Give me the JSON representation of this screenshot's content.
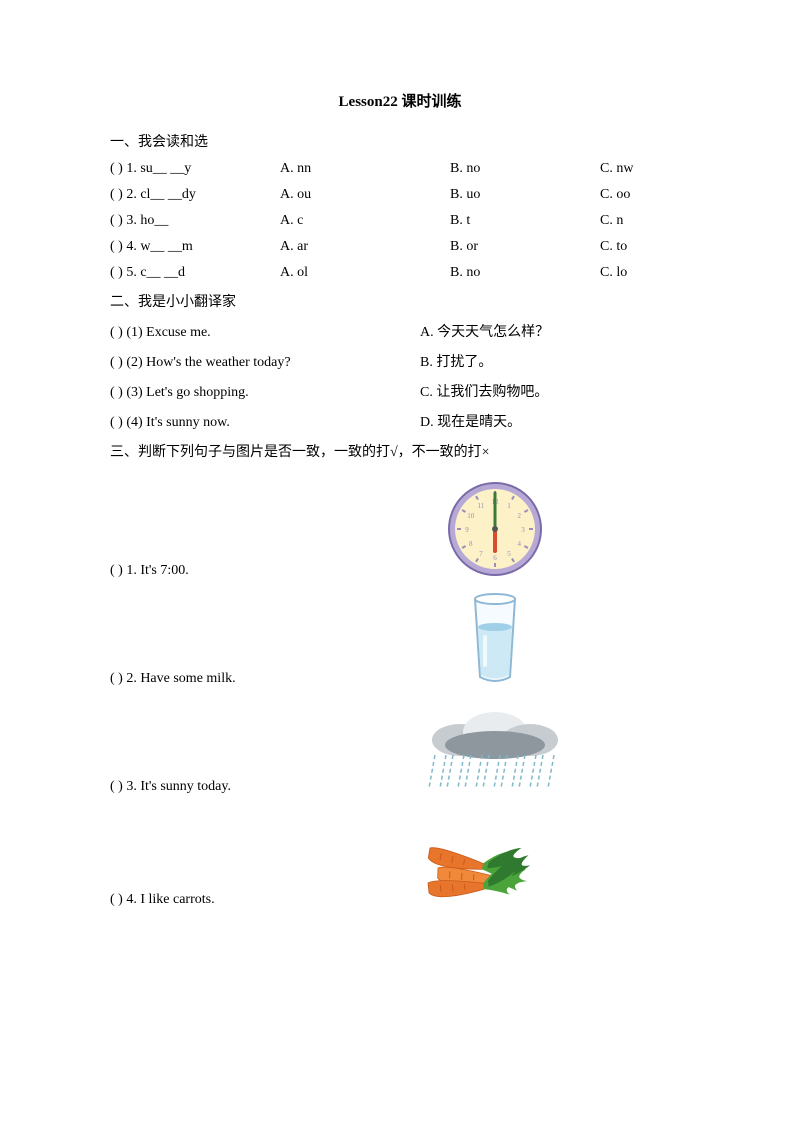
{
  "title": "Lesson22 课时训练",
  "section1": {
    "header": "一、我会读和选",
    "rows": [
      {
        "q": "(  ) 1. su__ __y",
        "a": "A. nn",
        "b": "B. no",
        "c": "C. nw"
      },
      {
        "q": "(  ) 2. cl__ __dy",
        "a": "A. ou",
        "b": "B. uo",
        "c": "C. oo"
      },
      {
        "q": "(  ) 3. ho__",
        "a": "A. c",
        "b": "B. t",
        "c": "C. n"
      },
      {
        "q": "(  ) 4. w__ __m",
        "a": "A. ar",
        "b": "B. or",
        "c": "C. to"
      },
      {
        "q": "(  ) 5. c__ __d",
        "a": "A. ol",
        "b": "B. no",
        "c": "C. lo"
      }
    ]
  },
  "section2": {
    "header": "二、我是小小翻译家",
    "rows": [
      {
        "l": "(  ) (1) Excuse me.",
        "r": "A. 今天天气怎么样？"
      },
      {
        "l": "(  ) (2) How's the weather today?",
        "r": "B. 打扰了。"
      },
      {
        "l": "(  ) (3) Let's go shopping.",
        "r": "C. 让我们去购物吧。"
      },
      {
        "l": "(  ) (4) It's sunny now.",
        "r": "D. 现在是晴天。"
      }
    ]
  },
  "section3": {
    "header": "三、判断下列句子与图片是否一致，一致的打√，不一致的打×",
    "items": [
      {
        "text": "(  ) 1. It's 7:00.",
        "img": "clock"
      },
      {
        "text": "(  ) 2. Have some milk.",
        "img": "glass"
      },
      {
        "text": "(  ) 3. It's sunny today.",
        "img": "rain"
      },
      {
        "text": "(  ) 4. I like carrots.",
        "img": "carrots"
      }
    ]
  },
  "images": {
    "clock": {
      "face_fill": "#fdf1c7",
      "rim_fill": "#b7a9d6",
      "rim_stroke": "#7a6aa8",
      "hour_hand": "#d94a2e",
      "minute_hand": "#3b7a3b",
      "tick_color": "#9a8db8",
      "center": "#555555"
    },
    "glass": {
      "outline": "#8fb8d6",
      "water_top": "#9fd0e8",
      "water_body": "#cde9f5",
      "highlight": "#ffffff"
    },
    "rain": {
      "cloud_light": "#e9ecef",
      "cloud_mid": "#c7ccd1",
      "cloud_dark": "#8f979e",
      "rain_color": "#7fb8c9"
    },
    "carrots": {
      "body1": "#e8752c",
      "body2": "#f08a3a",
      "leaf1": "#2f7a2f",
      "leaf2": "#4aa43a",
      "line": "#c85a1a"
    }
  }
}
